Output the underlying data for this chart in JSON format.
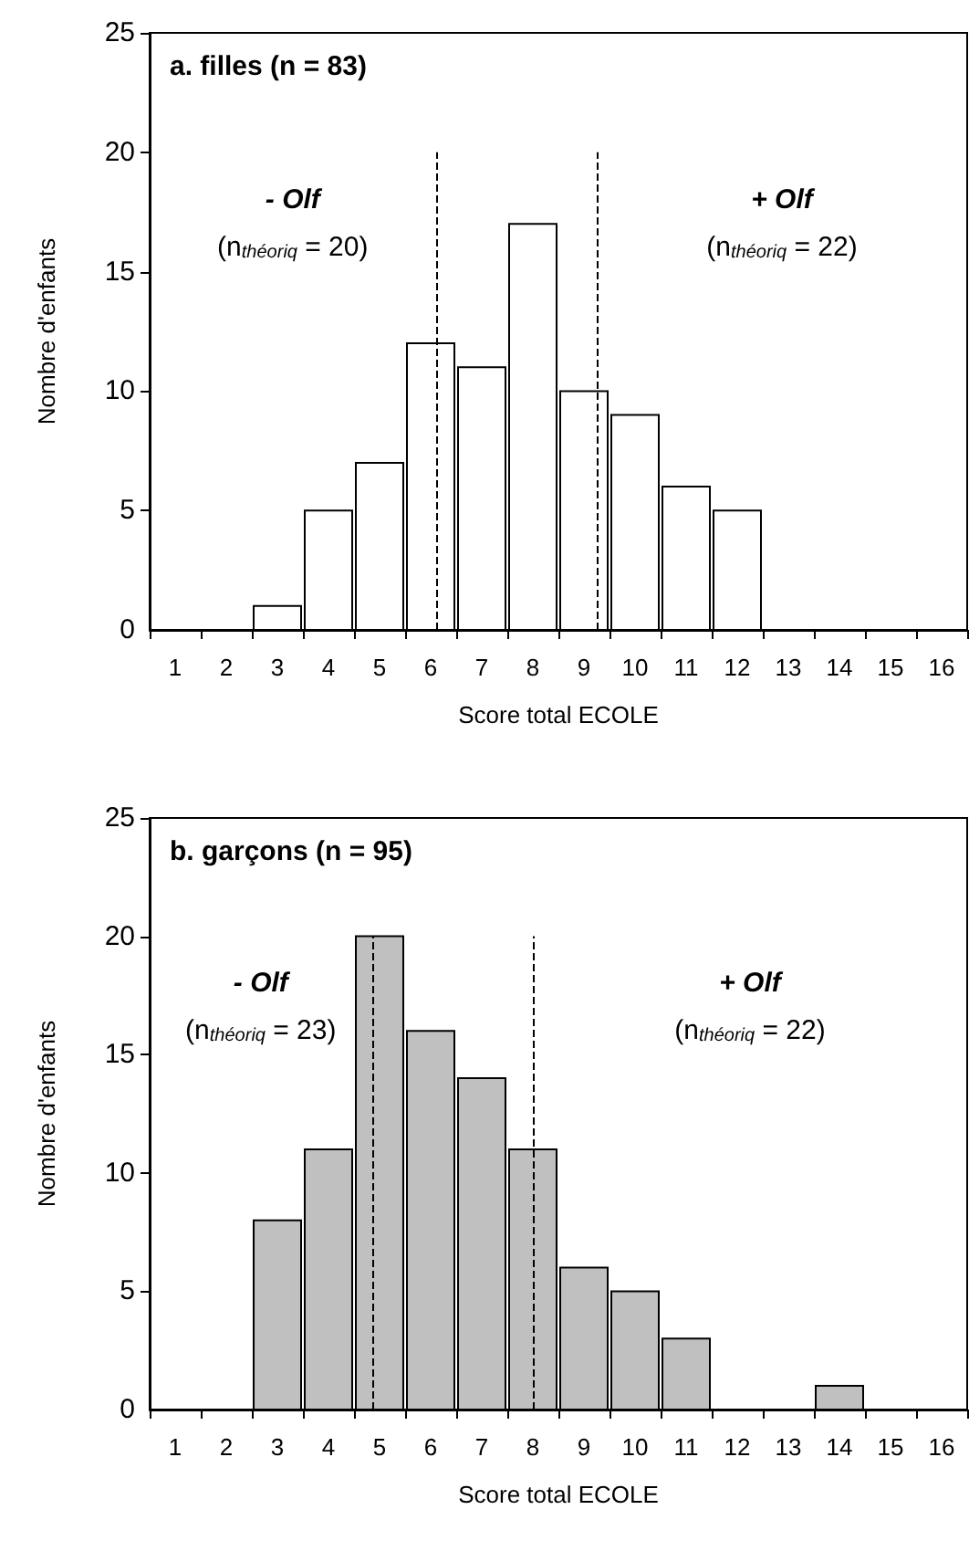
{
  "chart_data": [
    {
      "type": "histogram",
      "title": "a. filles (n = 83)",
      "xlabel": "Score total ECOLE",
      "ylabel": "Nombre d'enfants",
      "bins": [
        0.5,
        1.5,
        2.5,
        3.5,
        4.5,
        5.5,
        6.5,
        7.5,
        8.5,
        9.5,
        10.5,
        11.5,
        12.5,
        13.5,
        14.5,
        15.5,
        16.5
      ],
      "values": [
        0,
        0,
        1,
        5,
        7,
        12,
        11,
        17,
        10,
        9,
        6,
        5,
        0,
        0,
        0,
        0
      ],
      "color": "#ffffff",
      "xlim": [
        0.5,
        16.5
      ],
      "xticks": [
        1,
        2,
        3,
        4,
        5,
        6,
        7,
        8,
        9,
        10,
        11,
        12,
        13,
        14,
        15,
        16,
        {
          "value": 0.5,
          "label": null
        },
        {
          "value": 1.5,
          "label": null
        },
        {
          "value": 2.5,
          "label": null
        },
        {
          "value": 3.5,
          "label": null
        },
        {
          "value": 4.5,
          "label": null
        },
        {
          "value": 5.5,
          "label": null
        },
        {
          "value": 6.5,
          "label": null
        },
        {
          "value": 7.5,
          "label": null
        },
        {
          "value": 8.5,
          "label": null
        },
        {
          "value": 9.5,
          "label": null
        },
        {
          "value": 10.5,
          "label": null
        },
        {
          "value": 11.5,
          "label": null
        },
        {
          "value": 12.5,
          "label": null
        },
        {
          "value": 13.5,
          "label": null
        },
        {
          "value": 14.5,
          "label": null
        },
        {
          "value": 15.5,
          "label": null
        },
        {
          "value": 16.5,
          "label": null
        }
      ],
      "ylim": [
        0,
        25
      ],
      "yticks": [
        0,
        5,
        10,
        15,
        20,
        25
      ],
      "grid": false,
      "ref_lines": [
        {
          "axis": "x",
          "value": 6.1,
          "color": "#000000",
          "line_style": "dashed"
        },
        {
          "axis": "x",
          "value": 9.25,
          "color": "#000000",
          "line_style": "dashed"
        }
      ],
      "annotations": [
        "- Olf",
        "(n$_{théoriq}$ = 20)",
        "+ Olf",
        "(n$_{théoriq}$ = 22)"
      ]
    },
    {
      "type": "histogram",
      "title": "b. garçons (n = 95)",
      "xlabel": "Score total ECOLE",
      "ylabel": "Nombre d'enfants",
      "bins": [
        0.5,
        1.5,
        2.5,
        3.5,
        4.5,
        5.5,
        6.5,
        7.5,
        8.5,
        9.5,
        10.5,
        11.5,
        12.5,
        13.5,
        14.5,
        15.5,
        16.5
      ],
      "values": [
        0,
        0,
        8,
        11,
        20,
        16,
        14,
        11,
        6,
        5,
        3,
        0,
        0,
        1,
        0,
        0
      ],
      "color": "#c0c0c0",
      "xlim": [
        0.5,
        16.5
      ],
      "xticks": [
        1,
        2,
        3,
        4,
        5,
        6,
        7,
        8,
        9,
        10,
        11,
        12,
        13,
        14,
        15,
        16,
        {
          "value": 0.5,
          "label": null
        },
        {
          "value": 1.5,
          "label": null
        },
        {
          "value": 2.5,
          "label": null
        },
        {
          "value": 3.5,
          "label": null
        },
        {
          "value": 4.5,
          "label": null
        },
        {
          "value": 5.5,
          "label": null
        },
        {
          "value": 6.5,
          "label": null
        },
        {
          "value": 7.5,
          "label": null
        },
        {
          "value": 8.5,
          "label": null
        },
        {
          "value": 9.5,
          "label": null
        },
        {
          "value": 10.5,
          "label": null
        },
        {
          "value": 11.5,
          "label": null
        },
        {
          "value": 12.5,
          "label": null
        },
        {
          "value": 13.5,
          "label": null
        },
        {
          "value": 14.5,
          "label": null
        },
        {
          "value": 15.5,
          "label": null
        },
        {
          "value": 16.5,
          "label": null
        }
      ],
      "ylim": [
        0,
        25
      ],
      "yticks": [
        0,
        5,
        10,
        15,
        20,
        25
      ],
      "grid": false,
      "ref_lines": [
        {
          "axis": "x",
          "value": 4.85,
          "color": "#000000",
          "line_style": "dashed"
        },
        {
          "axis": "x",
          "value": 8.0,
          "color": "#000000",
          "line_style": "dashed"
        }
      ],
      "annotations": [
        "- Olf",
        "(n$_{théoriq}$ = 23)",
        "+ Olf",
        "(n$_{théoriq}$ = 22)"
      ]
    }
  ]
}
